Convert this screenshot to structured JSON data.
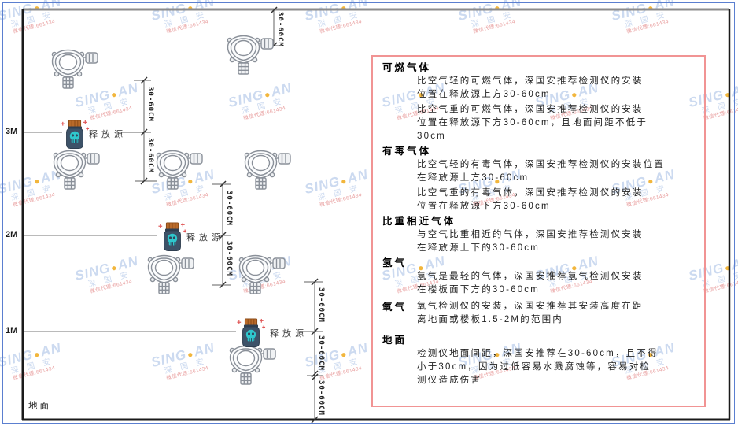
{
  "watermark": {
    "brand_left": "SING",
    "dot": "●",
    "brand_right": "AN",
    "subtitle": "深 国 安",
    "agent": "微信代理:661434"
  },
  "labels": {
    "ground": "地面",
    "source": "释放源",
    "dim": "30-60CM",
    "levels": [
      "3M",
      "2M",
      "1M"
    ]
  },
  "panel": {
    "sections": [
      {
        "heading": "可燃气体",
        "paras": [
          [
            "比空气轻的可燃气体，深国安推荐检测仪的安装",
            "位置在释放源上方30-60cm"
          ],
          [
            "比空气重的可燃气体，深国安推荐检测仪的安装",
            "位置在释放源下方30-60cm，且地面间距不低于",
            "30cm"
          ]
        ]
      },
      {
        "heading": "有毒气体",
        "paras": [
          [
            "比空气轻的有毒气体，深国安推荐检测仪的安装位置",
            "在释放源上方30-60cm"
          ],
          [
            "比空气重的有毒气体，深国安推荐检测仪的安装",
            "位置在释放源下方30-60cm"
          ]
        ]
      },
      {
        "heading": "比重相近气体",
        "paras": [
          [
            "与空气比重相近的气体，深国安推荐检测仪安装",
            "在释放源上下的30-60cm"
          ]
        ]
      },
      {
        "heading": "氢气",
        "paras": [
          [
            "氢气是最轻的气体，深国安推荐氢气检测仪安装",
            "在楼板面下方的30-60cm"
          ]
        ]
      },
      {
        "heading": "氧气",
        "paras": [
          [
            "氧气检测仪的安装，深国安推荐其安装高度在距",
            "离地面或楼板1.5-2M的范围内"
          ]
        ]
      },
      {
        "heading": "地面",
        "paras": [
          [
            "检测仪地面间距，深国安推荐在30-60cm，且不得",
            "小于30cm，因为过低容易水溅腐蚀等，容易对检",
            "测仪造成伤害"
          ]
        ]
      }
    ]
  },
  "colors": {
    "panel_border": "#f19494",
    "watermark_blue": "#ccdaf0",
    "watermark_dot": "#f2b63c",
    "watermark_red": "#e89c9c",
    "bottle_body": "#3d5268",
    "bottle_cap": "#b96a2a",
    "bottle_emblem": "#2fc7cd",
    "line_dark": "#1a1a1a"
  }
}
